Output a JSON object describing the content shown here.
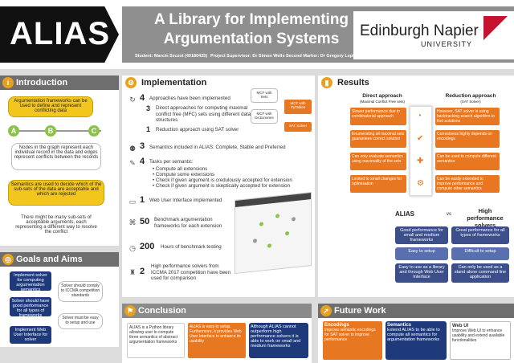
{
  "header": {
    "logo": "ALIAS",
    "title_line1": "A Library for Implementing",
    "title_line2": "Argumentation Systems",
    "student": "Student: Marcin Szczot (40180425)",
    "supervisor": "Project Supervisor: Dr Simon Wells",
    "marker": "Second Marker: Dr Gregory Leplatre",
    "university_name": "Edinburgh Napier",
    "university_sub": "UNIVERSITY"
  },
  "intro": {
    "title": "Introduction",
    "box1": "Argumentation frameworks can be used to define and represent conflicting data",
    "graph_nodes": [
      "A",
      "B",
      "C"
    ],
    "box2": "Nodes in the graph represent each individual record in the data and edges represent conflicts between the records",
    "box3": "Semantics are used to decide which of the sub-sets of the data are acceptable and which are rejected",
    "box4": "There might be many sub-sets of acceptable arguments, each representing a different way to resolve the conflict"
  },
  "goals": {
    "title": "Goals and Aims",
    "items": [
      {
        "left": "Implement solver for computing argumentation semantics",
        "right": "Solver should comply to ICCMA competition standards"
      },
      {
        "left": "Solver should have good performance for all types of frameworks",
        "right": "Solver must be easy to setup and use"
      },
      {
        "left": "Implement Web User Interface for solver",
        "right": ""
      }
    ]
  },
  "implementation": {
    "title": "Implementation",
    "approaches_num": "4",
    "approaches_label": "Approaches have been implemented",
    "direct_num": "3",
    "direct_label": "Direct approaches for computing maximal conflict free (MFC) sets using different data structures",
    "reduction_num": "1",
    "reduction_label": "Reduction approach using SAT solver",
    "chips": [
      "MCF with Sets",
      "MCF with PyTables",
      "MCF with Dictionaries",
      "SAT Solver"
    ],
    "semantics_num": "3",
    "semantics_label": "Semantics included in ALIAS: Complete, Stable and Preferred",
    "tasks_num": "4",
    "tasks_label": "Tasks per semantic:",
    "tasks": [
      "Compute all extensions",
      "Compute some extensions",
      "Check if given argument is credulously accepted for extension",
      "Check if given argument is skeptically accepted for extension"
    ],
    "web_num": "1",
    "web_label": "Web User Interface implemented",
    "bench_num": "50",
    "bench_label": "Benchmark argumentation frameworks for each extension",
    "hours_num": "200",
    "hours_label": "Hours of benchmark testing",
    "solvers_num": "2",
    "solvers_label": "High performance solvers from ICCMA 2017 competition have been used for comparison"
  },
  "results": {
    "title": "Results",
    "direct_title": "Direct approach",
    "direct_sub": "(Maximal Conflict Free sets)",
    "reduction_title": "Reduction approach",
    "reduction_sub": "(SAT Solver)",
    "rows": [
      {
        "left": "Slower performance due to combinatorial approach",
        "right": "However, SAT solver is using backtracking search algorithm to find solutions"
      },
      {
        "left": "Enumerating all maximal sets guarantees correct solution",
        "right": "Correctness highly depends on encodings"
      },
      {
        "left": "Can only evaluate semantics using maximality of the sets",
        "right": "Can be used to compute different semantics"
      },
      {
        "left": "Limited to small changes for optimisation",
        "right": "Can be easily extended to improve performance and compute other semantics"
      }
    ],
    "vs_left": "ALIAS",
    "vs": "vs",
    "vs_right": "High performance solvers",
    "compare": [
      {
        "left": "Good performance for small and medium frameworks",
        "right": "Great performance for all types of frameworks"
      },
      {
        "left": "Easy to setup",
        "right": "Difficult to setup"
      },
      {
        "left": "Easy to use as a library and through Web User Interface",
        "right": "Can only be used as a stand alone command line application"
      }
    ]
  },
  "conclusion": {
    "title": "Conclusion",
    "items": [
      "ALIAS is a Python library allowing user to compute three semantics of abstract argumentation frameworks",
      "ALIAS is easy to setup. Furthermore, it provides Web User Interface to enhance its usability",
      "Although ALIAS cannot outperform high performance solvers it is able to work on small and medium frameworks"
    ]
  },
  "future": {
    "title": "Future Work",
    "items": [
      {
        "title": "Encodings",
        "text": "Improve semantic encodings for SAT solver to improve performance"
      },
      {
        "title": "Semantics",
        "text": "Extend ALIAS to be able to compute all semantics for argumentation frameworks"
      },
      {
        "title": "Web UI",
        "text": "Improve Web UI to enhance usability and extend available functionalities"
      }
    ]
  },
  "colors": {
    "orange": "#e87722",
    "navy": "#1e3a7a",
    "yellow": "#f3c61d",
    "grey": "#6e6e6e"
  }
}
